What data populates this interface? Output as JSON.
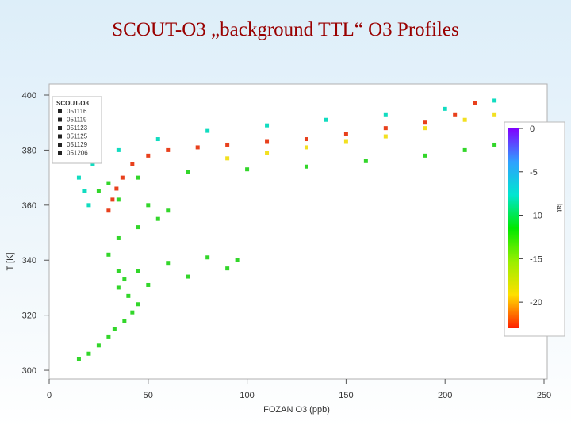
{
  "slide": {
    "title": "SCOUT-O3 „background TTL“ O3 Profiles"
  },
  "chart_data": {
    "type": "scatter",
    "title": "",
    "xlabel": "FOZAN O3 (ppb)",
    "ylabel": "T [K]",
    "xlim": [
      0,
      250
    ],
    "ylim": [
      298,
      400
    ],
    "xticks": [
      0,
      50,
      100,
      150,
      200,
      250
    ],
    "yticks": [
      300,
      320,
      340,
      360,
      380,
      400
    ],
    "grid": false,
    "legend": {
      "title": "SCOUT-O3",
      "entries": [
        "051116",
        "051119",
        "051123",
        "051125",
        "051129",
        "051206"
      ],
      "placement": "top-left"
    },
    "colorbar": {
      "label": "lat",
      "ticks": [
        0,
        -5,
        -10,
        -15,
        -20
      ],
      "range": [
        -23,
        0
      ],
      "colors": [
        "#ff2000",
        "#ffdf00",
        "#9aef00",
        "#00e800",
        "#00e6d0",
        "#2fa0ff",
        "#8000ff"
      ],
      "placement": "right"
    },
    "series": [
      {
        "color": "#32d62a",
        "points": [
          [
            15,
            304
          ],
          [
            20,
            306
          ],
          [
            25,
            309
          ],
          [
            30,
            312
          ],
          [
            33,
            315
          ],
          [
            38,
            318
          ],
          [
            42,
            321
          ],
          [
            45,
            324
          ],
          [
            40,
            327
          ],
          [
            35,
            330
          ],
          [
            38,
            333
          ],
          [
            45,
            336
          ],
          [
            60,
            339
          ],
          [
            80,
            341
          ],
          [
            95,
            340
          ],
          [
            90,
            337
          ],
          [
            70,
            334
          ],
          [
            50,
            331
          ],
          [
            35,
            336
          ],
          [
            30,
            342
          ],
          [
            35,
            348
          ],
          [
            45,
            352
          ],
          [
            55,
            355
          ],
          [
            60,
            358
          ],
          [
            50,
            360
          ],
          [
            35,
            362
          ],
          [
            25,
            365
          ],
          [
            30,
            368
          ],
          [
            45,
            370
          ],
          [
            70,
            372
          ],
          [
            100,
            373
          ],
          [
            130,
            374
          ],
          [
            160,
            376
          ],
          [
            190,
            378
          ],
          [
            210,
            380
          ],
          [
            225,
            382
          ]
        ]
      },
      {
        "color": "#11dcc0",
        "points": [
          [
            20,
            360
          ],
          [
            18,
            365
          ],
          [
            15,
            370
          ],
          [
            22,
            375
          ],
          [
            35,
            380
          ],
          [
            55,
            384
          ],
          [
            80,
            387
          ],
          [
            110,
            389
          ],
          [
            140,
            391
          ],
          [
            170,
            393
          ],
          [
            200,
            395
          ],
          [
            225,
            398
          ]
        ]
      },
      {
        "color": "#f2e020",
        "points": [
          [
            90,
            377
          ],
          [
            110,
            379
          ],
          [
            130,
            381
          ],
          [
            150,
            383
          ],
          [
            170,
            385
          ],
          [
            190,
            388
          ],
          [
            210,
            391
          ],
          [
            225,
            393
          ]
        ]
      },
      {
        "color": "#e8401c",
        "points": [
          [
            30,
            358
          ],
          [
            32,
            362
          ],
          [
            34,
            366
          ],
          [
            37,
            370
          ],
          [
            42,
            375
          ],
          [
            50,
            378
          ],
          [
            60,
            380
          ],
          [
            75,
            381
          ],
          [
            90,
            382
          ],
          [
            110,
            383
          ],
          [
            130,
            384
          ],
          [
            150,
            386
          ],
          [
            170,
            388
          ],
          [
            190,
            390
          ],
          [
            205,
            393
          ],
          [
            215,
            397
          ]
        ]
      }
    ]
  }
}
